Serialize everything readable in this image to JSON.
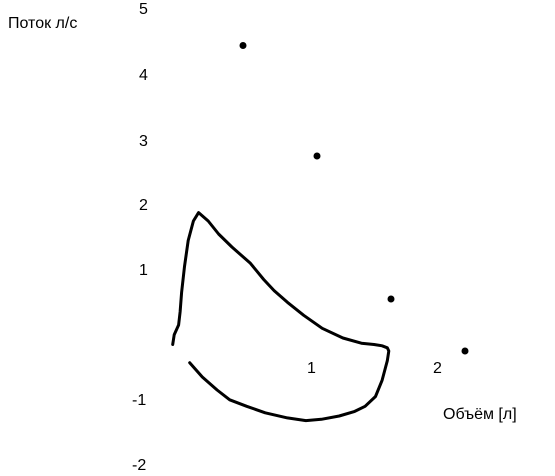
{
  "chart_data": {
    "type": "scatter",
    "ylabel": "Поток л/с",
    "xlabel": "Объём  [л]",
    "xlim": [
      -2.2,
      2.9
    ],
    "ylim": [
      -2,
      5
    ],
    "y_ticks": [
      "5",
      "4",
      "3",
      "2",
      "1",
      "-1",
      "-2"
    ],
    "y_tick_values": [
      5,
      4,
      3,
      2,
      1,
      -1,
      -2
    ],
    "x_ticks": [
      "1",
      "2"
    ],
    "x_tick_values": [
      1,
      2
    ],
    "colors": {
      "marks": "#000000"
    },
    "points": [
      {
        "x": 0.0,
        "y": 4.7
      },
      {
        "x": 1.0,
        "y": 3.0
      },
      {
        "x": 2.0,
        "y": 0.8
      },
      {
        "x": 3.0,
        "y": 0.0
      }
    ],
    "loop_curve": {
      "x": [
        -0.95,
        -0.93,
        -0.87,
        -0.85,
        -0.83,
        -0.79,
        -0.74,
        -0.67,
        -0.6,
        -0.47,
        -0.33,
        -0.15,
        0.1,
        0.28,
        0.42,
        0.6,
        0.82,
        1.07,
        1.35,
        1.6,
        1.77,
        1.88,
        1.95,
        1.97,
        1.95,
        1.88,
        1.79,
        1.65,
        1.51,
        1.3,
        1.06,
        0.85,
        0.6,
        0.3,
        0.05,
        -0.18,
        -0.35,
        -0.55,
        -0.72
      ],
      "y": [
        0.1,
        0.25,
        0.4,
        0.6,
        0.9,
        1.3,
        1.7,
        2.0,
        2.13,
        2.0,
        1.8,
        1.6,
        1.35,
        1.1,
        0.93,
        0.75,
        0.55,
        0.35,
        0.2,
        0.12,
        0.1,
        0.08,
        0.05,
        0.0,
        -0.15,
        -0.45,
        -0.7,
        -0.85,
        -0.93,
        -1.0,
        -1.05,
        -1.07,
        -1.03,
        -0.95,
        -0.85,
        -0.75,
        -0.6,
        -0.4,
        -0.18
      ]
    }
  }
}
